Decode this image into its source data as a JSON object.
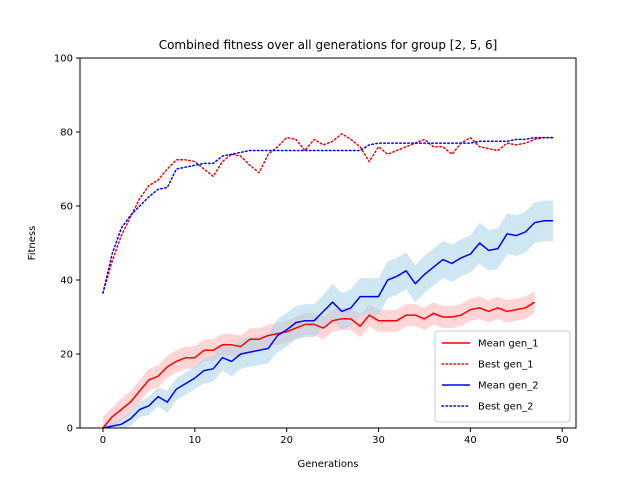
{
  "chart_data": {
    "type": "line",
    "title": "Combined fitness over all generations for group [2, 5, 6]",
    "xlabel": "Generations",
    "ylabel": "Fitness",
    "xlim": [
      -2.5,
      51.5
    ],
    "ylim": [
      0,
      100
    ],
    "xticks": [
      0,
      10,
      20,
      30,
      40,
      50
    ],
    "yticks": [
      0,
      20,
      40,
      60,
      80,
      100
    ],
    "grid": false,
    "legend_position": "lower-right",
    "series": [
      {
        "name": "Mean gen_1",
        "style": "solid",
        "color": "#ff0000",
        "band_color": "#ffb3b3",
        "x": [
          0,
          1,
          2,
          3,
          4,
          5,
          6,
          7,
          8,
          9,
          10,
          11,
          12,
          13,
          14,
          15,
          16,
          17,
          18,
          19,
          20,
          21,
          22,
          23,
          24,
          25,
          26,
          27,
          28,
          29,
          30,
          31,
          32,
          33,
          34,
          35,
          36,
          37,
          38,
          39,
          40,
          41,
          42,
          43,
          44,
          45,
          46,
          47
        ],
        "y": [
          0,
          3,
          5,
          7,
          10,
          13,
          14,
          16.5,
          18,
          19,
          19,
          21,
          21,
          22.5,
          22.5,
          22,
          24,
          24,
          25,
          25.5,
          26,
          27,
          28,
          28,
          27,
          29,
          29.5,
          29.5,
          27.5,
          30.5,
          29,
          29,
          29,
          30.5,
          30.5,
          29.5,
          31,
          30,
          30,
          30.5,
          32,
          32.5,
          31.5,
          32.5,
          31.5,
          32,
          32.5,
          34
        ],
        "band": [
          3,
          2.5,
          3,
          3,
          3,
          3,
          3,
          3,
          3,
          3,
          3,
          3,
          3,
          3,
          3,
          3,
          3,
          3,
          3,
          3,
          3,
          3,
          3,
          3,
          3,
          3,
          3,
          3,
          3,
          3,
          3,
          3,
          3,
          3,
          3,
          3,
          3,
          3,
          3,
          3,
          3,
          3,
          3,
          3,
          3,
          3,
          3,
          3
        ]
      },
      {
        "name": "Best gen_1",
        "style": "dotted",
        "color": "#ff0000",
        "x": [
          0,
          1,
          2,
          3,
          4,
          5,
          6,
          7,
          8,
          9,
          10,
          11,
          12,
          13,
          14,
          15,
          16,
          17,
          18,
          19,
          20,
          21,
          22,
          23,
          24,
          25,
          26,
          27,
          28,
          29,
          30,
          31,
          32,
          33,
          34,
          35,
          36,
          37,
          38,
          39,
          40,
          41,
          42,
          43,
          44,
          45,
          46,
          47,
          48,
          49
        ],
        "y": [
          36.5,
          45,
          52,
          57,
          62,
          65.5,
          67,
          70,
          72.5,
          72.5,
          72,
          70,
          68,
          72,
          74,
          73.5,
          71,
          69,
          74,
          76,
          78.5,
          78,
          75,
          78,
          76.5,
          77.5,
          79.5,
          78,
          76,
          72,
          76,
          74,
          75,
          76,
          77,
          78,
          76,
          76,
          74,
          77,
          78.5,
          76,
          75.5,
          75,
          77,
          76.5,
          77,
          78,
          78.5,
          78.5
        ]
      },
      {
        "name": "Mean gen_2",
        "style": "solid",
        "color": "#0000ff",
        "band_color": "#a8d4e8",
        "x": [
          0,
          1,
          2,
          3,
          4,
          5,
          6,
          7,
          8,
          9,
          10,
          11,
          12,
          13,
          14,
          15,
          16,
          17,
          18,
          19,
          20,
          21,
          22,
          23,
          24,
          25,
          26,
          27,
          28,
          29,
          30,
          31,
          32,
          33,
          34,
          35,
          36,
          37,
          38,
          39,
          40,
          41,
          42,
          43,
          44,
          45,
          46,
          47,
          48,
          49
        ],
        "y": [
          0,
          0.5,
          1,
          2.5,
          5,
          6,
          8.5,
          7,
          10.5,
          12,
          13.5,
          15.5,
          16,
          19,
          18,
          20,
          20.5,
          21,
          21.5,
          25,
          26.5,
          28.5,
          29,
          29,
          31.5,
          34,
          31.5,
          32.5,
          35.5,
          35.5,
          35.5,
          40,
          41,
          42.5,
          39,
          41.5,
          43.5,
          45.5,
          44.5,
          46,
          47,
          50,
          48,
          48.5,
          52.5,
          52,
          53,
          55.5,
          56,
          56
        ],
        "band": [
          0.5,
          1,
          1.5,
          2,
          2,
          2.5,
          2.5,
          3,
          3,
          3,
          3,
          3.5,
          3.5,
          3.5,
          4,
          4,
          4,
          4,
          4,
          4.5,
          4.5,
          4.5,
          4.5,
          4.5,
          4.5,
          5,
          5,
          5,
          5,
          5,
          5,
          5,
          5,
          5,
          5,
          5,
          5,
          5,
          5,
          5,
          5,
          5.5,
          5.5,
          5.5,
          5.5,
          5.5,
          5.5,
          5.5,
          5.5,
          5.5
        ]
      },
      {
        "name": "Best gen_2",
        "style": "dotted",
        "color": "#0000ff",
        "x": [
          0,
          1,
          2,
          3,
          4,
          5,
          6,
          7,
          8,
          9,
          10,
          11,
          12,
          13,
          14,
          15,
          16,
          17,
          18,
          19,
          20,
          21,
          22,
          23,
          24,
          25,
          26,
          27,
          28,
          29,
          30,
          31,
          32,
          33,
          34,
          35,
          36,
          37,
          38,
          39,
          40,
          41,
          42,
          43,
          44,
          45,
          46,
          47,
          48,
          49
        ],
        "y": [
          36.5,
          47,
          54,
          57.5,
          60,
          62.5,
          64.5,
          65,
          70,
          70.5,
          71,
          71.5,
          71.5,
          73.5,
          74,
          74.5,
          75,
          75,
          75,
          75,
          75,
          75,
          75,
          75,
          75,
          75,
          75,
          75,
          75,
          76.5,
          77,
          77,
          77,
          77,
          77,
          77,
          77,
          77,
          77,
          77,
          77,
          77.5,
          77.5,
          77.5,
          77.5,
          78,
          78,
          78.5,
          78.5,
          78.5
        ]
      }
    ]
  }
}
